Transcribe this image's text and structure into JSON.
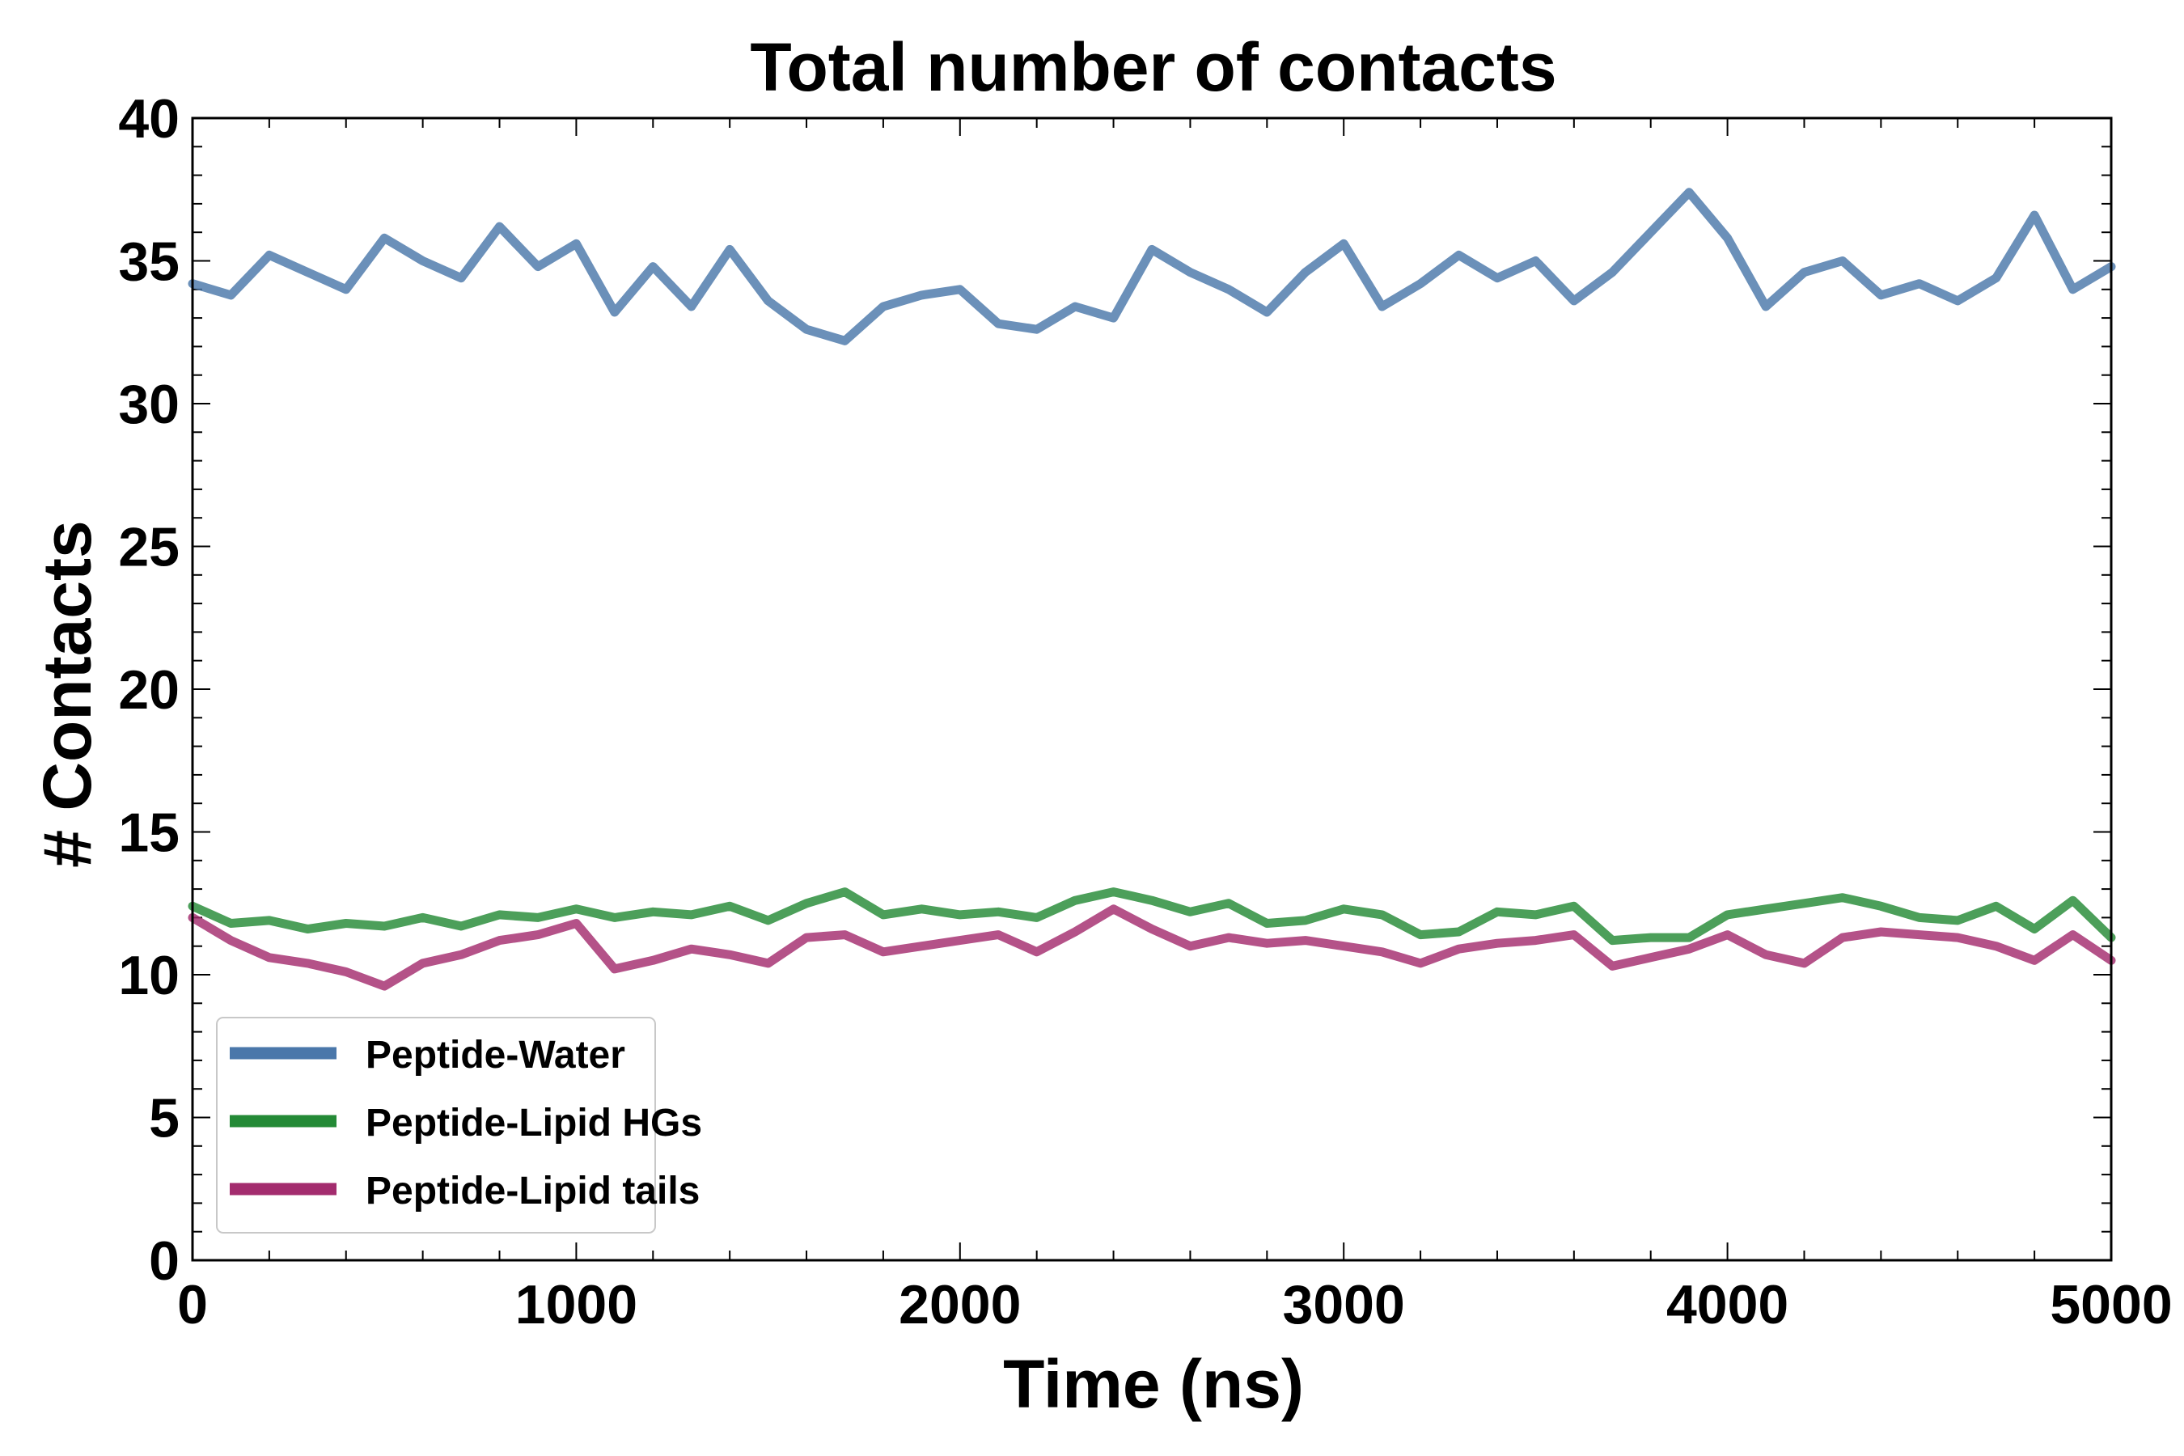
{
  "chart_data": {
    "type": "line",
    "title": "Total number of contacts",
    "xlabel": "Time (ns)",
    "ylabel": "# Contacts",
    "xlim": [
      0,
      5000
    ],
    "ylim": [
      0,
      40
    ],
    "xticks": [
      0,
      1000,
      2000,
      3000,
      4000,
      5000
    ],
    "yticks": [
      0,
      5,
      10,
      15,
      20,
      25,
      30,
      35,
      40
    ],
    "grid": false,
    "legend_position": "lower-left",
    "x": [
      0,
      100,
      200,
      300,
      400,
      500,
      600,
      700,
      800,
      900,
      1000,
      1100,
      1200,
      1300,
      1400,
      1500,
      1600,
      1700,
      1800,
      1900,
      2000,
      2100,
      2200,
      2300,
      2400,
      2500,
      2600,
      2700,
      2800,
      2900,
      3000,
      3100,
      3200,
      3300,
      3400,
      3500,
      3600,
      3700,
      3800,
      3900,
      4000,
      4100,
      4200,
      4300,
      4400,
      4500,
      4600,
      4700,
      4800,
      4900,
      5000
    ],
    "series": [
      {
        "name": "Peptide-Water",
        "color": "#4a77aa",
        "values": [
          34.2,
          33.8,
          35.2,
          34.6,
          34.0,
          35.8,
          35.0,
          34.4,
          36.2,
          34.8,
          35.6,
          33.2,
          34.8,
          33.4,
          35.4,
          33.6,
          32.6,
          32.2,
          33.4,
          33.8,
          34.0,
          32.8,
          32.6,
          33.4,
          33.0,
          35.4,
          34.6,
          34.0,
          33.2,
          34.6,
          35.6,
          33.4,
          34.2,
          35.2,
          34.4,
          35.0,
          33.6,
          34.6,
          36.0,
          37.4,
          35.8,
          33.4,
          34.6,
          35.0,
          33.8,
          34.2,
          33.6,
          34.4,
          36.6,
          34.0,
          34.8
        ]
      },
      {
        "name": "Peptide-Lipid HGs",
        "color": "#248a36",
        "values": [
          12.4,
          11.8,
          11.9,
          11.6,
          11.8,
          11.7,
          12.0,
          11.7,
          12.1,
          12.0,
          12.3,
          12.0,
          12.2,
          12.1,
          12.4,
          11.9,
          12.5,
          12.9,
          12.1,
          12.3,
          12.1,
          12.2,
          12.0,
          12.6,
          12.9,
          12.6,
          12.2,
          12.5,
          11.8,
          11.9,
          12.3,
          12.1,
          11.4,
          11.5,
          12.2,
          12.1,
          12.4,
          11.2,
          11.3,
          11.3,
          12.1,
          12.3,
          12.5,
          12.7,
          12.4,
          12.0,
          11.9,
          12.4,
          11.6,
          12.6,
          11.3
        ]
      },
      {
        "name": "Peptide-Lipid tails",
        "color": "#a32c6e",
        "values": [
          12.0,
          11.2,
          10.6,
          10.4,
          10.1,
          9.6,
          10.4,
          10.7,
          11.2,
          11.4,
          11.8,
          10.2,
          10.5,
          10.9,
          10.7,
          10.4,
          11.3,
          11.4,
          10.8,
          11.0,
          11.2,
          11.4,
          10.8,
          11.5,
          12.3,
          11.6,
          11.0,
          11.3,
          11.1,
          11.2,
          11.0,
          10.8,
          10.4,
          10.9,
          11.1,
          11.2,
          11.4,
          10.3,
          10.6,
          10.9,
          11.4,
          10.7,
          10.4,
          11.3,
          11.5,
          11.4,
          11.3,
          11.0,
          10.5,
          11.4,
          10.5
        ]
      }
    ]
  }
}
